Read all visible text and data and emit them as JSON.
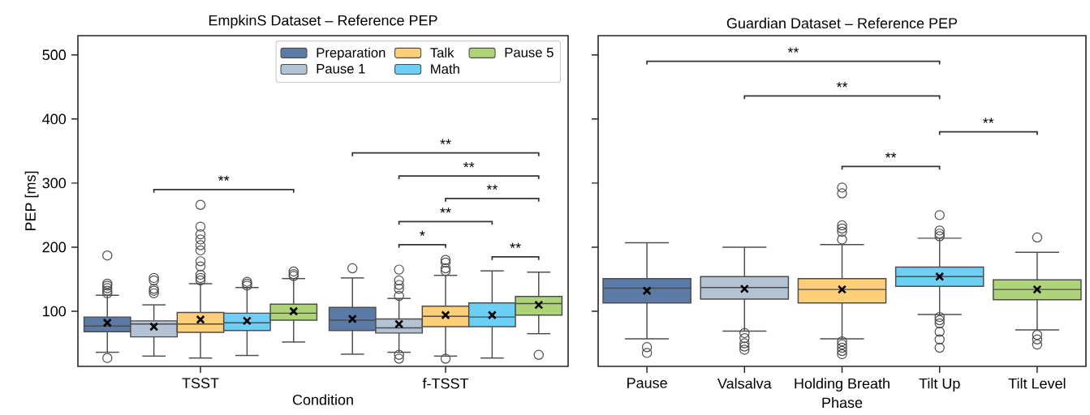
{
  "chart_data": [
    {
      "type": "box",
      "title": "EmpkinS Dataset – Reference PEP",
      "xlabel": "Condition",
      "ylabel": "PEP [ms]",
      "categories": [
        "TSST",
        "f-TSST"
      ],
      "ylim": [
        14,
        530
      ],
      "yticks": [
        100,
        200,
        300,
        400,
        500
      ],
      "legend": "top right",
      "series": [
        {
          "name": "Preparation",
          "color": "#5b7ba6",
          "boxes": [
            {
              "low": 36,
              "q1": 68,
              "median": 77,
              "q3": 91,
              "high": 125,
              "mean": 82,
              "outliers": [
                27,
                128,
                132,
                136,
                140,
                143,
                187
              ]
            },
            {
              "low": 33,
              "q1": 70,
              "median": 86,
              "q3": 106,
              "high": 152,
              "mean": 88,
              "outliers": [
                167
              ]
            }
          ]
        },
        {
          "name": "Pause 1",
          "color": "#b3c3d3",
          "boxes": [
            {
              "low": 30,
              "q1": 60,
              "median": 80,
              "q3": 85,
              "high": 110,
              "mean": 76,
              "outliers": [
                128,
                132,
                135,
                148,
                152
              ]
            },
            {
              "low": 36,
              "q1": 66,
              "median": 74,
              "q3": 88,
              "high": 120,
              "mean": 80,
              "outliers": [
                26,
                32,
                124,
                135,
                141,
                148,
                165
              ]
            }
          ]
        },
        {
          "name": "Talk",
          "color": "#fecf79",
          "boxes": [
            {
              "low": 27,
              "q1": 67,
              "median": 80,
              "q3": 98,
              "high": 143,
              "mean": 87,
              "outliers": [
                148,
                152,
                157,
                170,
                178,
                195,
                203,
                212,
                220,
                232,
                266
              ]
            },
            {
              "low": 30,
              "q1": 76,
              "median": 92,
              "q3": 108,
              "high": 156,
              "mean": 94,
              "outliers": [
                26,
                163,
                167,
                176,
                180
              ]
            }
          ]
        },
        {
          "name": "Math",
          "color": "#6bcff6",
          "boxes": [
            {
              "low": 31,
              "q1": 70,
              "median": 82,
              "q3": 97,
              "high": 137,
              "mean": 85,
              "outliers": [
                140,
                143,
                146
              ]
            },
            {
              "low": 27,
              "q1": 76,
              "median": 91,
              "q3": 113,
              "high": 163,
              "mean": 94
            }
          ]
        },
        {
          "name": "Pause 5",
          "color": "#add476",
          "boxes": [
            {
              "low": 52,
              "q1": 86,
              "median": 97,
              "q3": 111,
              "high": 151,
              "mean": 100,
              "outliers": [
                155,
                158,
                162
              ]
            },
            {
              "low": 65,
              "q1": 94,
              "median": 112,
              "q3": 123,
              "high": 161,
              "mean": 110,
              "outliers": [
                32
              ]
            }
          ]
        }
      ],
      "annotations": [
        "**",
        "**",
        "**",
        "**",
        "**",
        "*",
        "**"
      ]
    },
    {
      "type": "box",
      "title": "Guardian Dataset – Reference PEP",
      "xlabel": "Phase",
      "categories": [
        "Pause",
        "Valsalva",
        "Holding Breath",
        "Tilt Up",
        "Tilt Level"
      ],
      "ylim": [
        14,
        530
      ],
      "yticks": [
        100,
        200,
        300,
        400,
        500
      ],
      "tick_labels": "x",
      "colors": [
        "#5b7ba6",
        "#b3c3d3",
        "#fecf79",
        "#6bcff6",
        "#add476"
      ],
      "boxes": [
        {
          "low": 57,
          "q1": 113,
          "median": 136,
          "q3": 151,
          "high": 207,
          "mean": 132,
          "outliers": [
            35,
            44
          ]
        },
        {
          "low": 69,
          "q1": 119,
          "median": 137,
          "q3": 154,
          "high": 200,
          "mean": 135,
          "outliers": [
            40,
            45,
            50,
            58,
            66
          ]
        },
        {
          "low": 57,
          "q1": 113,
          "median": 134,
          "q3": 151,
          "high": 204,
          "mean": 134,
          "outliers": [
            33,
            38,
            43,
            48,
            53,
            212,
            224,
            229,
            234,
            284,
            293
          ]
        },
        {
          "low": 95,
          "q1": 139,
          "median": 154,
          "q3": 169,
          "high": 214,
          "mean": 154,
          "outliers": [
            43,
            56,
            68,
            81,
            86,
            91,
            217,
            221,
            226,
            250
          ]
        },
        {
          "low": 71,
          "q1": 118,
          "median": 134,
          "q3": 149,
          "high": 192,
          "mean": 134,
          "outliers": [
            48,
            56,
            63,
            215
          ]
        }
      ],
      "annotations": [
        "**",
        "**",
        "**",
        "**"
      ]
    }
  ]
}
